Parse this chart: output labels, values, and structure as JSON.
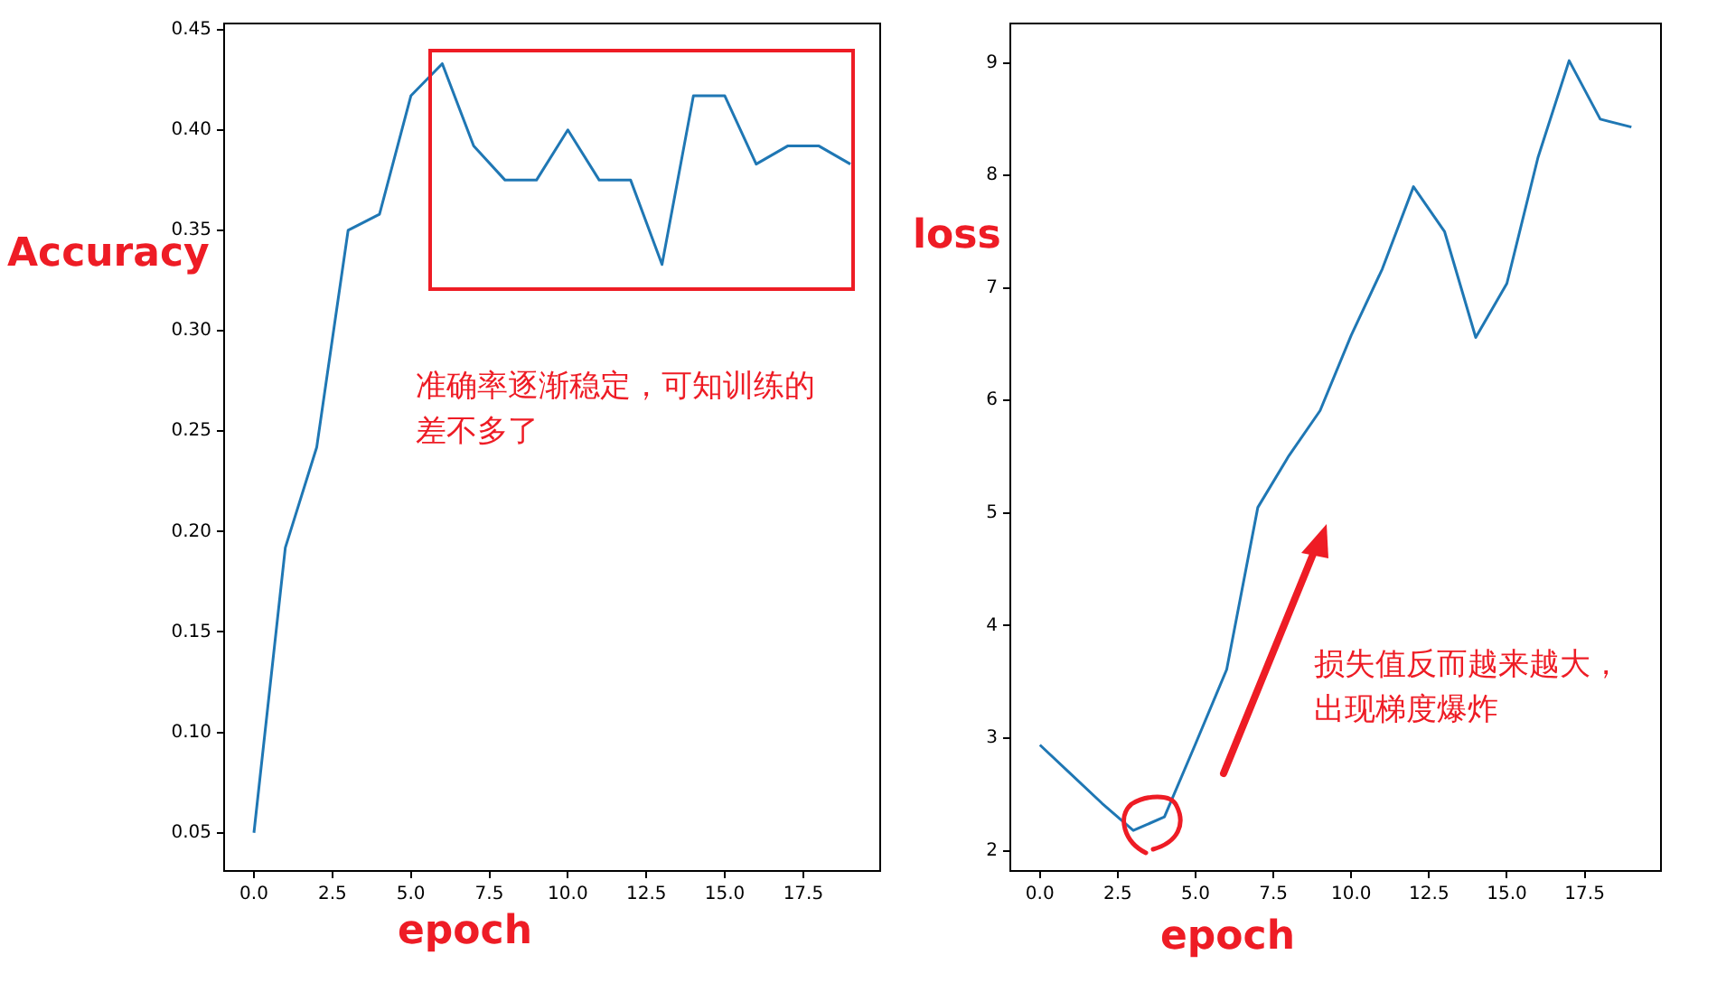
{
  "chart_data": [
    {
      "type": "line",
      "xlabel": "epoch",
      "ylabel": "Accuracy",
      "x": [
        0,
        1,
        2,
        3,
        4,
        5,
        6,
        7,
        8,
        9,
        10,
        11,
        12,
        13,
        14,
        15,
        16,
        17,
        18,
        19
      ],
      "series": [
        {
          "color": "#1f77b4",
          "values": [
            0.05,
            0.192,
            0.242,
            0.35,
            0.358,
            0.417,
            0.433,
            0.392,
            0.375,
            0.375,
            0.4,
            0.375,
            0.375,
            0.333,
            0.417,
            0.417,
            0.383,
            0.392,
            0.392,
            0.383
          ]
        }
      ],
      "xlim": [
        -0.95,
        19.95
      ],
      "ylim": [
        0.031,
        0.453
      ],
      "xticks": [
        {
          "value": 0,
          "label": "0.0"
        },
        {
          "value": 2.5,
          "label": "2.5"
        },
        {
          "value": 5,
          "label": "5.0"
        },
        {
          "value": 7.5,
          "label": "7.5"
        },
        {
          "value": 10,
          "label": "10.0"
        },
        {
          "value": 12.5,
          "label": "12.5"
        },
        {
          "value": 15,
          "label": "15.0"
        },
        {
          "value": 17.5,
          "label": "17.5"
        }
      ],
      "yticks": [
        {
          "value": 0.05,
          "label": "0.05"
        },
        {
          "value": 0.1,
          "label": "0.10"
        },
        {
          "value": 0.15,
          "label": "0.15"
        },
        {
          "value": 0.2,
          "label": "0.20"
        },
        {
          "value": 0.25,
          "label": "0.25"
        },
        {
          "value": 0.3,
          "label": "0.30"
        },
        {
          "value": 0.35,
          "label": "0.35"
        },
        {
          "value": 0.4,
          "label": "0.40"
        },
        {
          "value": 0.45,
          "label": "0.45"
        }
      ],
      "grid": false,
      "annotations": [
        "准确率逐渐稳定，可知训练的差不多了"
      ]
    },
    {
      "type": "line",
      "xlabel": "epoch",
      "ylabel": "loss",
      "x": [
        0,
        1,
        2,
        3,
        4,
        5,
        6,
        7,
        8,
        9,
        10,
        11,
        12,
        13,
        14,
        15,
        16,
        17,
        18,
        19
      ],
      "series": [
        {
          "color": "#1f77b4",
          "values": [
            2.94,
            2.68,
            2.42,
            2.18,
            2.3,
            2.95,
            3.61,
            5.05,
            5.51,
            5.91,
            6.58,
            7.17,
            7.9,
            7.5,
            6.56,
            7.04,
            8.16,
            9.02,
            8.5,
            8.43
          ]
        }
      ],
      "xlim": [
        -0.95,
        19.95
      ],
      "ylim": [
        1.82,
        9.35
      ],
      "xticks": [
        {
          "value": 0,
          "label": "0.0"
        },
        {
          "value": 2.5,
          "label": "2.5"
        },
        {
          "value": 5,
          "label": "5.0"
        },
        {
          "value": 7.5,
          "label": "7.5"
        },
        {
          "value": 10,
          "label": "10.0"
        },
        {
          "value": 12.5,
          "label": "12.5"
        },
        {
          "value": 15,
          "label": "15.0"
        },
        {
          "value": 17.5,
          "label": "17.5"
        }
      ],
      "yticks": [
        2,
        3,
        4,
        5,
        6,
        7,
        8,
        9
      ],
      "grid": false,
      "annotations": [
        "损失值反而越来越大，出现梯度爆炸"
      ]
    }
  ]
}
